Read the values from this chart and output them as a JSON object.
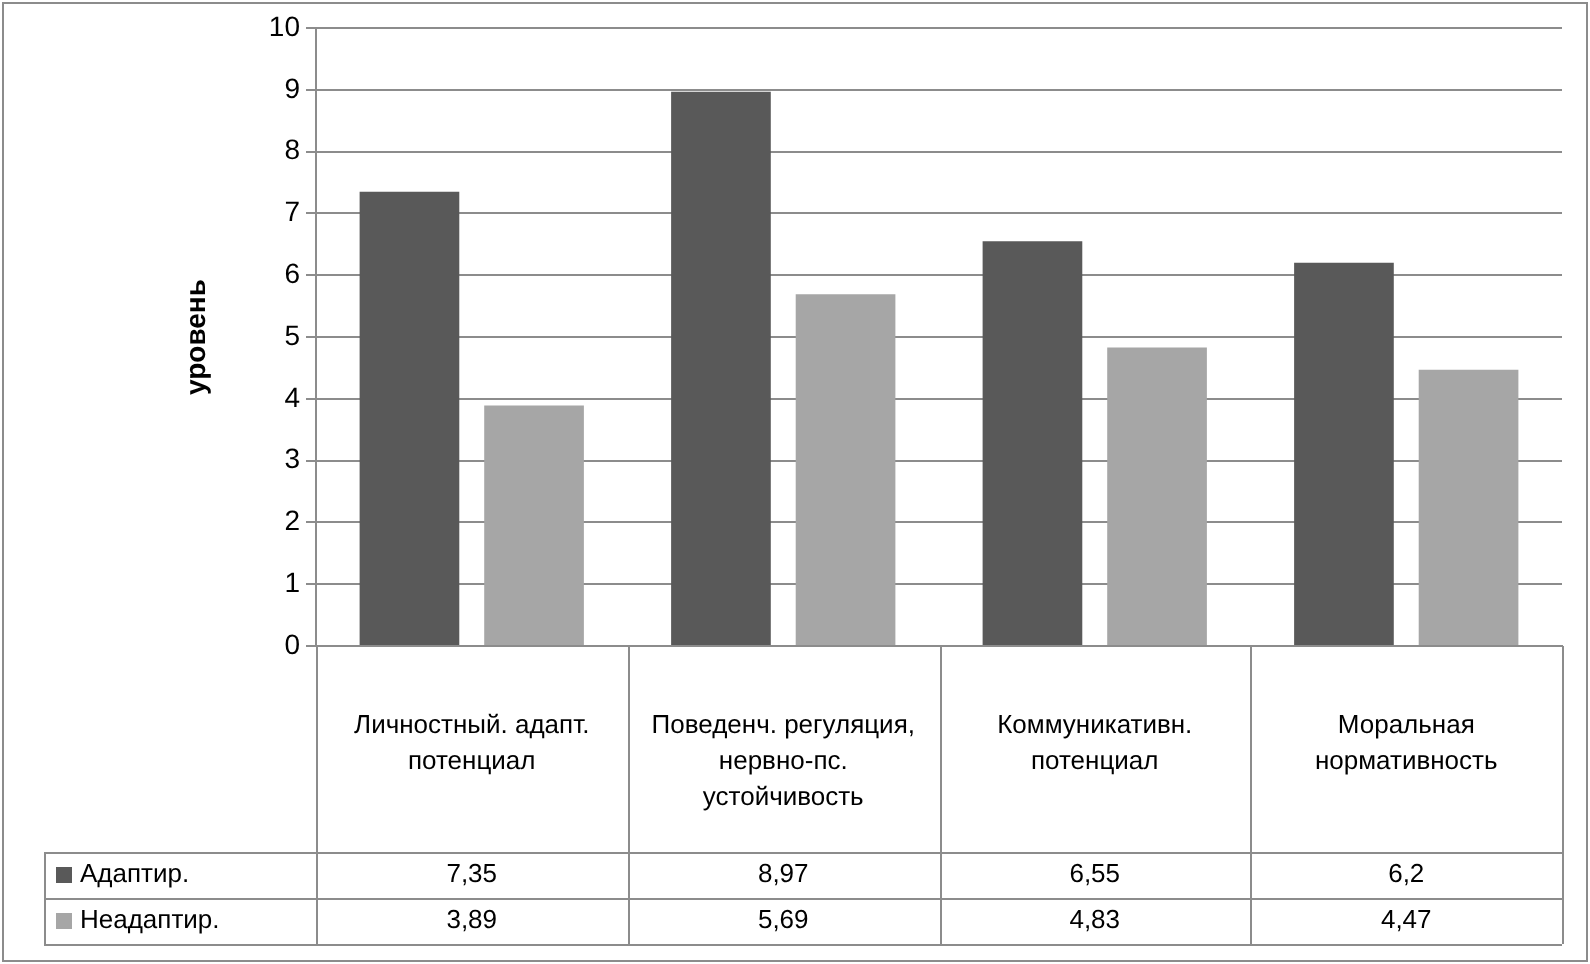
{
  "chart_data": {
    "type": "bar",
    "ylabel": "уровень",
    "categories": [
      "Личностный. адапт. потенциал",
      "Поведенч. регуляция, нервно-пс. устойчивость",
      "Коммуникативн. потенциал",
      "Моральная нормативность"
    ],
    "series": [
      {
        "name": "Адаптир.",
        "color": "#595959",
        "values": [
          7.35,
          8.97,
          6.55,
          6.2
        ],
        "value_labels": [
          "7,35",
          "8,97",
          "6,55",
          "6,2"
        ]
      },
      {
        "name": "Неадаптир.",
        "color": "#a6a6a6",
        "values": [
          3.89,
          5.69,
          4.83,
          4.47
        ],
        "value_labels": [
          "3,89",
          "5,69",
          "4,83",
          "4,47"
        ]
      }
    ],
    "ylim": [
      0,
      10
    ],
    "yticks": [
      0,
      1,
      2,
      3,
      4,
      5,
      6,
      7,
      8,
      9,
      10
    ],
    "grid": "y",
    "legend": "bottom"
  }
}
